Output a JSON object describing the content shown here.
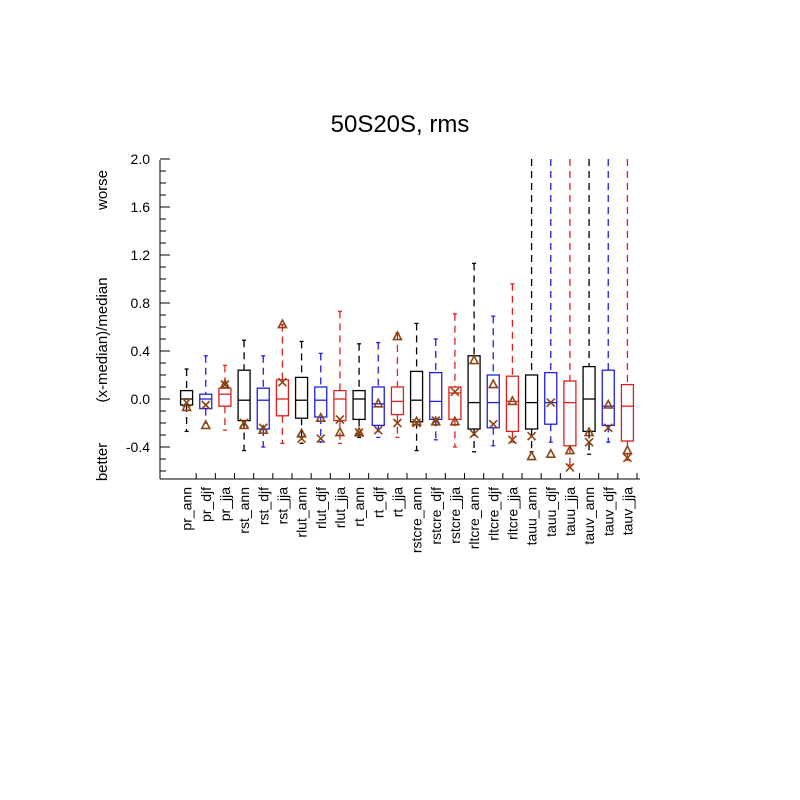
{
  "chart_data": {
    "type": "box",
    "title": "50S20S, rms",
    "ylabel_parts": {
      "better": "better",
      "middle": "(x-median)/median",
      "worse": "worse"
    },
    "ylim": [
      -0.65,
      2.0
    ],
    "yticks": [
      -0.4,
      0.0,
      0.4,
      0.8,
      1.2,
      1.6,
      2.0
    ],
    "ytick_labels": [
      "-0.4",
      "0.0",
      "0.4",
      "0.8",
      "1.2",
      "1.6",
      "2.0"
    ],
    "colors": {
      "black": "#000000",
      "blue": "#1f1fe0",
      "red": "#e01f1f",
      "marker": "#8b4513"
    },
    "boxes": [
      {
        "label": "pr_ann",
        "color": "black",
        "whisker_low": -0.27,
        "q1": -0.05,
        "median": 0.0,
        "q3": 0.07,
        "whisker_high": 0.25,
        "x_marker": -0.03,
        "triangle": -0.07
      },
      {
        "label": "pr_djf",
        "color": "blue",
        "whisker_low": -0.2,
        "q1": -0.08,
        "median": 0.0,
        "q3": 0.04,
        "whisker_high": 0.36,
        "x_marker": -0.05,
        "triangle": -0.22
      },
      {
        "label": "pr_jja",
        "color": "red",
        "whisker_low": -0.26,
        "q1": -0.06,
        "median": 0.04,
        "q3": 0.09,
        "whisker_high": 0.28,
        "x_marker": 0.12,
        "triangle": 0.12
      },
      {
        "label": "rst_ann",
        "color": "black",
        "whisker_low": -0.43,
        "q1": -0.18,
        "median": -0.01,
        "q3": 0.24,
        "whisker_high": 0.49,
        "x_marker": -0.2,
        "triangle": -0.22
      },
      {
        "label": "rst_djf",
        "color": "blue",
        "whisker_low": -0.4,
        "q1": -0.25,
        "median": -0.01,
        "q3": 0.09,
        "whisker_high": 0.36,
        "x_marker": -0.24,
        "triangle": -0.26
      },
      {
        "label": "rst_jja",
        "color": "red",
        "whisker_low": -0.37,
        "q1": -0.14,
        "median": 0.0,
        "q3": 0.16,
        "whisker_high": 0.62,
        "x_marker": 0.14,
        "triangle": 0.62
      },
      {
        "label": "rlut_ann",
        "color": "black",
        "whisker_low": -0.37,
        "q1": -0.16,
        "median": -0.01,
        "q3": 0.18,
        "whisker_high": 0.48,
        "x_marker": -0.33,
        "triangle": -0.29
      },
      {
        "label": "rlut_djf",
        "color": "blue",
        "whisker_low": -0.36,
        "q1": -0.15,
        "median": -0.01,
        "q3": 0.1,
        "whisker_high": 0.38,
        "x_marker": -0.33,
        "triangle": -0.16
      },
      {
        "label": "rlut_jja",
        "color": "red",
        "whisker_low": -0.37,
        "q1": -0.18,
        "median": 0.0,
        "q3": 0.07,
        "whisker_high": 0.73,
        "x_marker": -0.17,
        "triangle": -0.28
      },
      {
        "label": "rt_ann",
        "color": "black",
        "whisker_low": -0.32,
        "q1": -0.17,
        "median": 0.0,
        "q3": 0.07,
        "whisker_high": 0.46,
        "x_marker": -0.28,
        "triangle": -0.28
      },
      {
        "label": "rt_djf",
        "color": "blue",
        "whisker_low": -0.32,
        "q1": -0.22,
        "median": -0.04,
        "q3": 0.1,
        "whisker_high": 0.47,
        "x_marker": -0.26,
        "triangle": -0.04
      },
      {
        "label": "rt_jja",
        "color": "red",
        "whisker_low": -0.32,
        "q1": -0.13,
        "median": -0.02,
        "q3": 0.1,
        "whisker_high": 0.55,
        "x_marker": -0.2,
        "triangle": 0.52
      },
      {
        "label": "rstcre_ann",
        "color": "black",
        "whisker_low": -0.43,
        "q1": -0.19,
        "median": -0.01,
        "q3": 0.23,
        "whisker_high": 0.63,
        "x_marker": -0.2,
        "triangle": -0.19
      },
      {
        "label": "rstcre_djf",
        "color": "blue",
        "whisker_low": -0.34,
        "q1": -0.17,
        "median": -0.02,
        "q3": 0.22,
        "whisker_high": 0.5,
        "x_marker": -0.18,
        "triangle": -0.19
      },
      {
        "label": "rstcre_jja",
        "color": "red",
        "whisker_low": -0.4,
        "q1": -0.17,
        "median": 0.05,
        "q3": 0.1,
        "whisker_high": 0.71,
        "x_marker": 0.06,
        "triangle": -0.19
      },
      {
        "label": "rltcre_ann",
        "color": "black",
        "whisker_low": -0.44,
        "q1": -0.25,
        "median": -0.03,
        "q3": 0.36,
        "whisker_high": 1.13,
        "x_marker": -0.29,
        "triangle": 0.32
      },
      {
        "label": "rltcre_djf",
        "color": "blue",
        "whisker_low": -0.39,
        "q1": -0.24,
        "median": -0.03,
        "q3": 0.2,
        "whisker_high": 0.69,
        "x_marker": -0.21,
        "triangle": 0.12
      },
      {
        "label": "rltcre_jja",
        "color": "red",
        "whisker_low": -0.36,
        "q1": -0.27,
        "median": -0.02,
        "q3": 0.19,
        "whisker_high": 0.96,
        "x_marker": -0.34,
        "triangle": -0.02
      },
      {
        "label": "tauu_ann",
        "color": "black",
        "whisker_low": -0.44,
        "q1": -0.25,
        "median": -0.03,
        "q3": 0.2,
        "whisker_high": 2.0,
        "x_marker": -0.31,
        "triangle": -0.48
      },
      {
        "label": "tauu_djf",
        "color": "blue",
        "whisker_low": -0.36,
        "q1": -0.21,
        "median": -0.03,
        "q3": 0.22,
        "whisker_high": 2.0,
        "x_marker": -0.03,
        "triangle": -0.46
      },
      {
        "label": "tauu_jja",
        "color": "red",
        "whisker_low": -0.55,
        "q1": -0.39,
        "median": -0.03,
        "q3": 0.15,
        "whisker_high": 2.0,
        "x_marker": -0.57,
        "triangle": -0.43
      },
      {
        "label": "tauv_ann",
        "color": "black",
        "whisker_low": -0.46,
        "q1": -0.27,
        "median": 0.0,
        "q3": 0.27,
        "whisker_high": 2.0,
        "x_marker": -0.36,
        "triangle": -0.28
      },
      {
        "label": "tauv_djf",
        "color": "blue",
        "whisker_low": -0.36,
        "q1": -0.22,
        "median": -0.06,
        "q3": 0.24,
        "whisker_high": 2.0,
        "x_marker": -0.24,
        "triangle": -0.05
      },
      {
        "label": "tauv_jja",
        "color": "red",
        "whisker_low": -0.51,
        "q1": -0.35,
        "median": -0.06,
        "q3": 0.12,
        "whisker_high": 2.0,
        "x_marker": -0.49,
        "triangle": -0.43
      }
    ]
  }
}
